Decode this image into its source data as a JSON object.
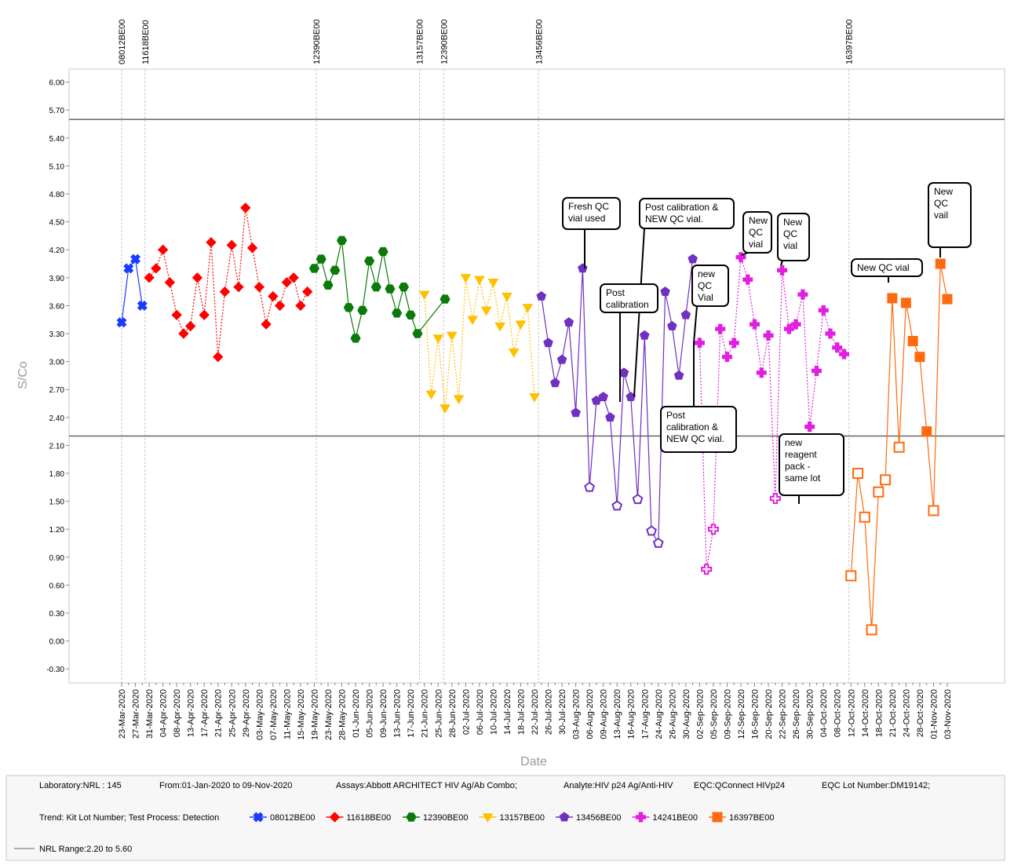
{
  "chart_data": {
    "type": "line",
    "x_label": "Date",
    "y_label": "S/Co",
    "ylim": [
      -0.45,
      6.14
    ],
    "yticks": [
      {
        "value": 6,
        "label": "6.00"
      },
      {
        "value": 5.7,
        "label": "5.70"
      },
      {
        "value": 5.4,
        "label": "5.40"
      },
      {
        "value": 5.1,
        "label": "5.10"
      },
      {
        "value": 4.8,
        "label": "4.80"
      },
      {
        "value": 4.5,
        "label": "4.50"
      },
      {
        "value": 4.2,
        "label": "4.20"
      },
      {
        "value": 3.9,
        "label": "3.90"
      },
      {
        "value": 3.6,
        "label": "3.60"
      },
      {
        "value": 3.3,
        "label": "3.30"
      },
      {
        "value": 3,
        "label": "3.00"
      },
      {
        "value": 2.7,
        "label": "2.70"
      },
      {
        "value": 2.4,
        "label": "2.40"
      },
      {
        "value": 2.1,
        "label": "2.10"
      },
      {
        "value": 1.8,
        "label": "1.80"
      },
      {
        "value": 1.5,
        "label": "1.50"
      },
      {
        "value": 1.2,
        "label": "1.20"
      },
      {
        "value": 0.9,
        "label": "0.90"
      },
      {
        "value": 0.6,
        "label": "0.60"
      },
      {
        "value": 0.3,
        "label": "0.30"
      },
      {
        "value": 0,
        "label": "0.00"
      },
      {
        "value": -0.3,
        "label": "-0.30"
      }
    ],
    "connect_gaps": true,
    "nrl_range": [
      2.2,
      5.6
    ],
    "range_color": "#666666",
    "range_label": "NRL Range:2.20 to 5.60",
    "categories": [
      "23-Mar-2020",
      null,
      "27-Mar-2020",
      null,
      "31-Mar-2020",
      null,
      "04-Apr-2020",
      null,
      "08-Apr-2020",
      null,
      "13-Apr-2020",
      null,
      "17-Apr-2020",
      null,
      "21-Apr-2020",
      null,
      "25-Apr-2020",
      null,
      "29-Apr-2020",
      null,
      "03-May-2020",
      null,
      "07-May-2020",
      null,
      "11-May-2020",
      null,
      "15-May-2020",
      null,
      "19-May-2020",
      null,
      "23-May-2020",
      null,
      "28-May-2020",
      null,
      "01-Jun-2020",
      null,
      "05-Jun-2020",
      null,
      "09-Jun-2020",
      null,
      "13-Jun-2020",
      null,
      "17-Jun-2020",
      null,
      "21-Jun-2020",
      null,
      "25-Jun-2020",
      null,
      "28-Jun-2020",
      null,
      "02-Jul-2020",
      null,
      "06-Jul-2020",
      null,
      "10-Jul-2020",
      null,
      "14-Jul-2020",
      null,
      "18-Jul-2020",
      null,
      "22-Jul-2020",
      null,
      "26-Jul-2020",
      null,
      "30-Jul-2020",
      null,
      "03-Aug-2020",
      null,
      "06-Aug-2020",
      null,
      "09-Aug-2020",
      null,
      "13-Aug-2020",
      null,
      "16-Aug-2020",
      null,
      "17-Aug-2020",
      null,
      "24-Aug-2020",
      null,
      "26-Aug-2020",
      null,
      "30-Aug-2020",
      null,
      "02-Sep-2020",
      null,
      "05-Sep-2020",
      null,
      "09-Sep-2020",
      null,
      "12-Sep-2020",
      null,
      "16-Sep-2020",
      null,
      "20-Sep-2020",
      null,
      "22-Sep-2020",
      null,
      "26-Sep-2020",
      null,
      "30-Sep-2020",
      null,
      "04-Oct-2020",
      null,
      "08-Oct-2020",
      null,
      "12-Oct-2020",
      null,
      "14-Oct-2020",
      null,
      "18-Oct-2020",
      null,
      "21-Oct-2020",
      null,
      "24-Oct-2020",
      null,
      "28-Oct-2020",
      null,
      "01-Nov-2020",
      null,
      "03-Nov-2020"
    ],
    "series": [
      {
        "name": "08012BE00",
        "color": "#1a3cff",
        "marker": "cross",
        "dash": false,
        "values": [
          3.42,
          4.0,
          4.1,
          3.6,
          null,
          null,
          null,
          null,
          null,
          null,
          null,
          null,
          null,
          null,
          null,
          null,
          null,
          null,
          null,
          null,
          null,
          null,
          null,
          null,
          null,
          null,
          null,
          null,
          null,
          null,
          null,
          null,
          null,
          null,
          null,
          null,
          null,
          null,
          null,
          null,
          null,
          null,
          null,
          null,
          null,
          null,
          null,
          null,
          null,
          null,
          null,
          null,
          null,
          null,
          null,
          null,
          null,
          null,
          null,
          null,
          null,
          null,
          null,
          null,
          null,
          null,
          null,
          null,
          null,
          null,
          null,
          null,
          null,
          null,
          null,
          null,
          null,
          null,
          null,
          null,
          null,
          null,
          null,
          null,
          null,
          null,
          null,
          null,
          null,
          null,
          null,
          null,
          null,
          null,
          null,
          null,
          null,
          null,
          null,
          null,
          null,
          null,
          null,
          null,
          null,
          null,
          null,
          null,
          null,
          null,
          null,
          null,
          null,
          null,
          null,
          null,
          null,
          null,
          null,
          null,
          null
        ]
      },
      {
        "name": "11618BE00",
        "color": "#ff0000",
        "marker": "diamond",
        "dash": true,
        "values": [
          null,
          null,
          null,
          null,
          3.9,
          4.0,
          4.2,
          3.85,
          3.5,
          3.3,
          3.38,
          3.9,
          3.5,
          4.28,
          3.05,
          3.75,
          4.25,
          3.8,
          4.65,
          4.22,
          3.8,
          3.4,
          3.7,
          3.6,
          3.85,
          3.9,
          3.6,
          3.75,
          null,
          null,
          null,
          null,
          null,
          null,
          null,
          null,
          null,
          null,
          null,
          null,
          null,
          null,
          null,
          null,
          null,
          null,
          null,
          null,
          null,
          null,
          null,
          null,
          null,
          null,
          null,
          null,
          null,
          null,
          null,
          null,
          null,
          null,
          null,
          null,
          null,
          null,
          null,
          null,
          null,
          null,
          null,
          null,
          null,
          null,
          null,
          null,
          null,
          null,
          null,
          null,
          null,
          null,
          null,
          null,
          null,
          null,
          null,
          null,
          null,
          null,
          null,
          null,
          null,
          null,
          null,
          null,
          null,
          null,
          null,
          null,
          null,
          null,
          null,
          null,
          null,
          null,
          null,
          null,
          null,
          null,
          null,
          null,
          null,
          null,
          null,
          null,
          null,
          null,
          null,
          null,
          null
        ]
      },
      {
        "name": "12390BE00",
        "color": "#0a7a0a",
        "marker": "hexagon",
        "dash": false,
        "values": [
          null,
          null,
          null,
          null,
          null,
          null,
          null,
          null,
          null,
          null,
          null,
          null,
          null,
          null,
          null,
          null,
          null,
          null,
          null,
          null,
          null,
          null,
          null,
          null,
          null,
          null,
          null,
          null,
          4.0,
          4.1,
          3.82,
          3.98,
          4.3,
          3.58,
          3.25,
          3.55,
          4.08,
          3.8,
          4.18,
          3.78,
          3.52,
          3.8,
          3.5,
          3.3,
          null,
          null,
          null,
          3.67,
          null,
          null,
          null,
          null,
          null,
          null,
          null,
          null,
          null,
          null,
          null,
          null,
          null,
          null,
          null,
          null,
          null,
          null,
          null,
          null,
          null,
          null,
          null,
          null,
          null,
          null,
          null,
          null,
          null,
          null,
          null,
          null,
          null,
          null,
          null,
          null,
          null,
          null,
          null,
          null,
          null,
          null,
          null,
          null,
          null,
          null,
          null,
          null,
          null,
          null,
          null,
          null,
          null,
          null,
          null,
          null,
          null,
          null,
          null,
          null,
          null,
          null,
          null,
          null,
          null,
          null,
          null,
          null,
          null,
          null,
          null,
          null,
          null
        ]
      },
      {
        "name": "13157BE00",
        "color": "#ffc000",
        "marker": "triangle-down",
        "dash": true,
        "values": [
          null,
          null,
          null,
          null,
          null,
          null,
          null,
          null,
          null,
          null,
          null,
          null,
          null,
          null,
          null,
          null,
          null,
          null,
          null,
          null,
          null,
          null,
          null,
          null,
          null,
          null,
          null,
          null,
          null,
          null,
          null,
          null,
          null,
          null,
          null,
          null,
          null,
          null,
          null,
          null,
          null,
          null,
          null,
          null,
          3.72,
          2.65,
          3.25,
          2.5,
          3.28,
          2.6,
          3.9,
          3.45,
          3.88,
          3.55,
          3.85,
          3.38,
          3.7,
          3.1,
          3.4,
          3.58,
          2.62,
          null,
          null,
          null,
          null,
          null,
          null,
          null,
          null,
          null,
          null,
          null,
          null,
          null,
          null,
          null,
          null,
          null,
          null,
          null,
          null,
          null,
          null,
          null,
          null,
          null,
          null,
          null,
          null,
          null,
          null,
          null,
          null,
          null,
          null,
          null,
          null,
          null,
          null,
          null,
          null,
          null,
          null,
          null,
          null,
          null,
          null,
          null,
          null,
          null,
          null,
          null,
          null,
          null,
          null,
          null,
          null,
          null,
          null,
          null,
          null
        ]
      },
      {
        "name": "13456BE00",
        "color": "#7030c0",
        "marker": "pentagon",
        "dash": false,
        "values": [
          null,
          null,
          null,
          null,
          null,
          null,
          null,
          null,
          null,
          null,
          null,
          null,
          null,
          null,
          null,
          null,
          null,
          null,
          null,
          null,
          null,
          null,
          null,
          null,
          null,
          null,
          null,
          null,
          null,
          null,
          null,
          null,
          null,
          null,
          null,
          null,
          null,
          null,
          null,
          null,
          null,
          null,
          null,
          null,
          null,
          null,
          null,
          null,
          null,
          null,
          null,
          null,
          null,
          null,
          null,
          null,
          null,
          null,
          null,
          null,
          null,
          3.7,
          3.2,
          2.77,
          3.02,
          3.42,
          2.45,
          4.0,
          1.65,
          2.58,
          2.62,
          2.4,
          1.45,
          2.88,
          2.62,
          1.52,
          3.28,
          1.18,
          1.05,
          3.75,
          3.38,
          2.85,
          3.5,
          4.1,
          null,
          null,
          null,
          null,
          null,
          null,
          null,
          null,
          null,
          null,
          null,
          null,
          null,
          null,
          null,
          null,
          null,
          null,
          null,
          null,
          null,
          null,
          null,
          null,
          null,
          null,
          null,
          null,
          null,
          null,
          null,
          null,
          null,
          null,
          null,
          null,
          null
        ]
      },
      {
        "name": "14241BE00",
        "color": "#e020e0",
        "marker": "plus",
        "dash": true,
        "values": [
          null,
          null,
          null,
          null,
          null,
          null,
          null,
          null,
          null,
          null,
          null,
          null,
          null,
          null,
          null,
          null,
          null,
          null,
          null,
          null,
          null,
          null,
          null,
          null,
          null,
          null,
          null,
          null,
          null,
          null,
          null,
          null,
          null,
          null,
          null,
          null,
          null,
          null,
          null,
          null,
          null,
          null,
          null,
          null,
          null,
          null,
          null,
          null,
          null,
          null,
          null,
          null,
          null,
          null,
          null,
          null,
          null,
          null,
          null,
          null,
          null,
          null,
          null,
          null,
          null,
          null,
          null,
          null,
          null,
          null,
          null,
          null,
          null,
          null,
          null,
          null,
          null,
          null,
          null,
          null,
          null,
          null,
          null,
          null,
          3.2,
          0.77,
          1.2,
          3.35,
          3.05,
          3.2,
          4.12,
          3.88,
          3.4,
          2.88,
          3.28,
          1.53,
          3.98,
          3.35,
          3.4,
          3.72,
          2.3,
          2.9,
          3.55,
          3.3,
          3.15,
          3.08,
          null,
          null,
          null,
          null,
          null,
          null,
          null,
          null,
          null,
          null,
          null,
          null,
          null,
          null,
          null
        ]
      },
      {
        "name": "16397BE00",
        "color": "#ff6a10",
        "marker": "square",
        "dash": false,
        "values": [
          null,
          null,
          null,
          null,
          null,
          null,
          null,
          null,
          null,
          null,
          null,
          null,
          null,
          null,
          null,
          null,
          null,
          null,
          null,
          null,
          null,
          null,
          null,
          null,
          null,
          null,
          null,
          null,
          null,
          null,
          null,
          null,
          null,
          null,
          null,
          null,
          null,
          null,
          null,
          null,
          null,
          null,
          null,
          null,
          null,
          null,
          null,
          null,
          null,
          null,
          null,
          null,
          null,
          null,
          null,
          null,
          null,
          null,
          null,
          null,
          null,
          null,
          null,
          null,
          null,
          null,
          null,
          null,
          null,
          null,
          null,
          null,
          null,
          null,
          null,
          null,
          null,
          null,
          null,
          null,
          null,
          null,
          null,
          null,
          null,
          null,
          null,
          null,
          null,
          null,
          null,
          null,
          null,
          null,
          null,
          null,
          null,
          null,
          null,
          null,
          null,
          null,
          null,
          null,
          null,
          null,
          0.7,
          1.8,
          1.33,
          0.12,
          1.6,
          1.73,
          3.68,
          2.08,
          3.63,
          3.22,
          3.05,
          2.25,
          1.4,
          4.05,
          3.67
        ]
      }
    ],
    "lot_markers": [
      "08012BE00",
      "11618BE00",
      "12390BE00",
      "13157BE00",
      "12390BE00",
      "13456BE00",
      "16397BE00"
    ],
    "annotations": [
      {
        "lines": [
          "Fresh QC",
          "vial used"
        ]
      },
      {
        "lines": [
          "Post calibration &",
          "NEW QC vial."
        ]
      },
      {
        "lines": [
          "Post",
          "calibration"
        ]
      },
      {
        "lines": [
          "new",
          "QC",
          "Vial"
        ]
      },
      {
        "lines": [
          "New",
          "QC",
          "vial"
        ]
      },
      {
        "lines": [
          "New",
          "QC",
          "vial"
        ]
      },
      {
        "lines": [
          "Post",
          "calibration &",
          "NEW QC vial."
        ]
      },
      {
        "lines": [
          "new",
          "reagent",
          "pack -",
          "same lot"
        ]
      },
      {
        "lines": [
          "New QC vial"
        ]
      },
      {
        "lines": [
          "New",
          "QC",
          "vail"
        ]
      }
    ],
    "info": [
      "Laboratory:NRL : 145",
      "From:01-Jan-2020 to 09-Nov-2020",
      "Assays:Abbott ARCHITECT HIV Ag/Ab Combo;",
      "Analyte:HIV p24 Ag/Anti-HIV",
      "EQC:QConnect HIVp24",
      "EQC Lot Number:DM19142;"
    ],
    "trend_label": "Trend: Kit Lot Number; Test Process: Detection"
  }
}
